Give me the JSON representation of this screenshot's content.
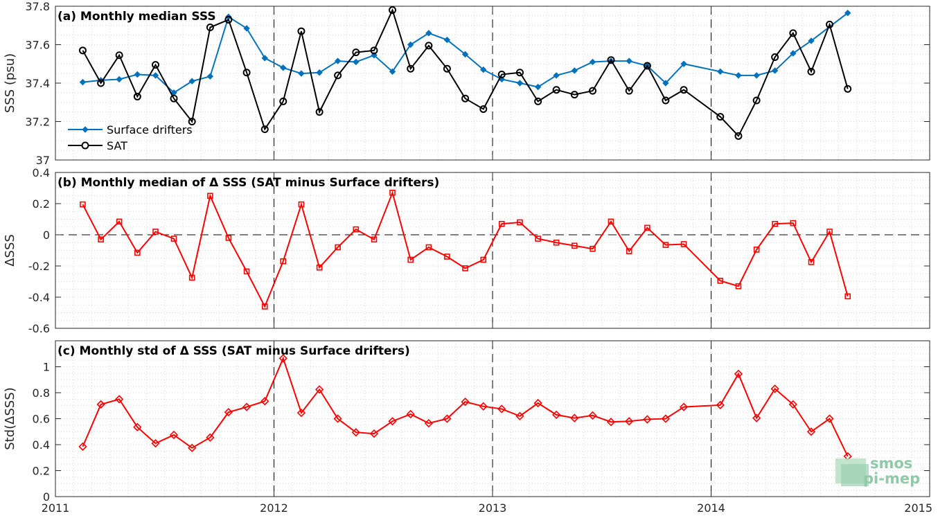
{
  "chart_data": [
    {
      "type": "line",
      "title": "(a) Monthly median SSS",
      "ylabel": "SSS (psu)",
      "ylim": [
        37,
        37.8
      ],
      "yticks": [
        37,
        37.2,
        37.4,
        37.6,
        37.8
      ],
      "ytick_labels": [
        "37",
        "37.2",
        "37.4",
        "37.6",
        "37.8"
      ],
      "xlim": [
        2011,
        2015
      ],
      "grid": "minor dotted",
      "legend_position": "bottom-left",
      "series": [
        {
          "name": "Surface drifters",
          "color": "#0072bd",
          "marker": "diamond-filled",
          "x": [
            2011.125,
            2011.208,
            2011.292,
            2011.375,
            2011.458,
            2011.542,
            2011.625,
            2011.708,
            2011.792,
            2011.875,
            2011.958,
            2012.042,
            2012.125,
            2012.208,
            2012.292,
            2012.375,
            2012.458,
            2012.542,
            2012.625,
            2012.708,
            2012.792,
            2012.875,
            2012.958,
            2013.042,
            2013.125,
            2013.208,
            2013.292,
            2013.375,
            2013.458,
            2013.542,
            2013.625,
            2013.708,
            2013.792,
            2013.875,
            2014.042,
            2014.125,
            2014.208,
            2014.292,
            2014.375,
            2014.458,
            2014.625
          ],
          "y": [
            37.405,
            37.415,
            37.42,
            37.445,
            37.44,
            37.35,
            37.41,
            37.435,
            37.745,
            37.685,
            37.53,
            37.48,
            37.45,
            37.455,
            37.515,
            37.51,
            37.545,
            37.46,
            37.6,
            37.66,
            37.625,
            37.55,
            37.47,
            37.42,
            37.4,
            37.38,
            37.44,
            37.465,
            37.51,
            37.515,
            37.515,
            37.49,
            37.4,
            37.5,
            37.46,
            37.44,
            37.44,
            37.465,
            37.555,
            37.62,
            37.765
          ]
        },
        {
          "name": "SAT",
          "color": "#000000",
          "marker": "circle-open",
          "x": [
            2011.125,
            2011.208,
            2011.292,
            2011.375,
            2011.458,
            2011.542,
            2011.625,
            2011.708,
            2011.792,
            2011.875,
            2011.958,
            2012.042,
            2012.125,
            2012.208,
            2012.292,
            2012.375,
            2012.458,
            2012.542,
            2012.625,
            2012.708,
            2012.792,
            2012.875,
            2012.958,
            2013.042,
            2013.125,
            2013.208,
            2013.292,
            2013.375,
            2013.458,
            2013.542,
            2013.625,
            2013.708,
            2013.792,
            2013.875,
            2014.042,
            2014.125,
            2014.208,
            2014.292,
            2014.375,
            2014.458,
            2014.542,
            2014.625
          ],
          "y": [
            37.57,
            37.4,
            37.545,
            37.33,
            37.495,
            37.32,
            37.2,
            37.69,
            37.73,
            37.455,
            37.16,
            37.305,
            37.67,
            37.25,
            37.44,
            37.56,
            37.57,
            37.78,
            37.475,
            37.595,
            37.475,
            37.32,
            37.265,
            37.445,
            37.455,
            37.305,
            37.365,
            37.34,
            37.36,
            37.52,
            37.36,
            37.49,
            37.31,
            37.365,
            37.225,
            37.125,
            37.31,
            37.535,
            37.66,
            37.46,
            37.705,
            37.37
          ]
        }
      ]
    },
    {
      "type": "line",
      "title": "(b) Monthly median of Δ SSS (SAT minus Surface drifters)",
      "ylabel": "ΔSSS",
      "ylim": [
        -0.6,
        0.4
      ],
      "yticks": [
        -0.6,
        -0.4,
        -0.2,
        0,
        0.2,
        0.4
      ],
      "ytick_labels": [
        "-0.6",
        "-0.4",
        "-0.2",
        "0",
        "0.2",
        "0.4"
      ],
      "xlim": [
        2011,
        2015
      ],
      "grid": "minor dotted",
      "zero_line": "dashed",
      "series": [
        {
          "color": "#ff0000",
          "marker": "square-open",
          "x": [
            2011.125,
            2011.208,
            2011.292,
            2011.375,
            2011.458,
            2011.542,
            2011.625,
            2011.708,
            2011.792,
            2011.875,
            2011.958,
            2012.042,
            2012.125,
            2012.208,
            2012.292,
            2012.375,
            2012.458,
            2012.542,
            2012.625,
            2012.708,
            2012.792,
            2012.875,
            2012.958,
            2013.042,
            2013.125,
            2013.208,
            2013.292,
            2013.375,
            2013.458,
            2013.542,
            2013.625,
            2013.708,
            2013.792,
            2013.875,
            2014.042,
            2014.125,
            2014.208,
            2014.292,
            2014.375,
            2014.458,
            2014.542,
            2014.625
          ],
          "y": [
            0.195,
            -0.03,
            0.085,
            -0.115,
            0.02,
            -0.025,
            -0.275,
            0.25,
            -0.02,
            -0.235,
            -0.46,
            -0.17,
            0.195,
            -0.21,
            -0.08,
            0.035,
            -0.03,
            0.27,
            -0.16,
            -0.08,
            -0.14,
            -0.215,
            -0.16,
            0.07,
            0.08,
            -0.025,
            -0.05,
            -0.07,
            -0.09,
            0.085,
            -0.105,
            0.045,
            -0.065,
            -0.06,
            -0.295,
            -0.33,
            -0.095,
            0.07,
            0.075,
            -0.175,
            0.02,
            -0.395
          ]
        }
      ]
    },
    {
      "type": "line",
      "title": "(c) Monthly std of Δ SSS (SAT minus Surface drifters)",
      "ylabel": "Std(ΔSSS)",
      "ylim": [
        0,
        1.2
      ],
      "yticks": [
        0,
        0.2,
        0.4,
        0.6,
        0.8,
        1
      ],
      "ytick_labels": [
        "0",
        "0.2",
        "0.4",
        "0.6",
        "0.8",
        "1"
      ],
      "xlim": [
        2011,
        2015
      ],
      "xticks": [
        2011,
        2012,
        2013,
        2014,
        2015
      ],
      "xtick_labels": [
        "2011",
        "2012",
        "2013",
        "2014",
        "2015"
      ],
      "grid": "minor dotted",
      "series": [
        {
          "color": "#ff0000",
          "marker": "diamond-open",
          "x": [
            2011.125,
            2011.208,
            2011.292,
            2011.375,
            2011.458,
            2011.542,
            2011.625,
            2011.708,
            2011.792,
            2011.875,
            2011.958,
            2012.042,
            2012.125,
            2012.208,
            2012.292,
            2012.375,
            2012.458,
            2012.542,
            2012.625,
            2012.708,
            2012.792,
            2012.875,
            2012.958,
            2013.042,
            2013.125,
            2013.208,
            2013.292,
            2013.375,
            2013.458,
            2013.542,
            2013.625,
            2013.708,
            2013.792,
            2013.875,
            2014.042,
            2014.125,
            2014.208,
            2014.292,
            2014.375,
            2014.458,
            2014.542,
            2014.625
          ],
          "y": [
            0.385,
            0.71,
            0.75,
            0.535,
            0.41,
            0.475,
            0.375,
            0.455,
            0.65,
            0.69,
            0.735,
            1.065,
            0.645,
            0.825,
            0.6,
            0.495,
            0.485,
            0.58,
            0.635,
            0.565,
            0.6,
            0.73,
            0.695,
            0.675,
            0.62,
            0.72,
            0.63,
            0.605,
            0.625,
            0.575,
            0.58,
            0.595,
            0.6,
            0.69,
            0.705,
            0.945,
            0.605,
            0.83,
            0.71,
            0.5,
            0.6,
            0.31
          ]
        }
      ]
    }
  ],
  "vlines": [
    2012,
    2013,
    2014
  ],
  "logo": {
    "line1": "smos",
    "line2": "pi-mep"
  }
}
